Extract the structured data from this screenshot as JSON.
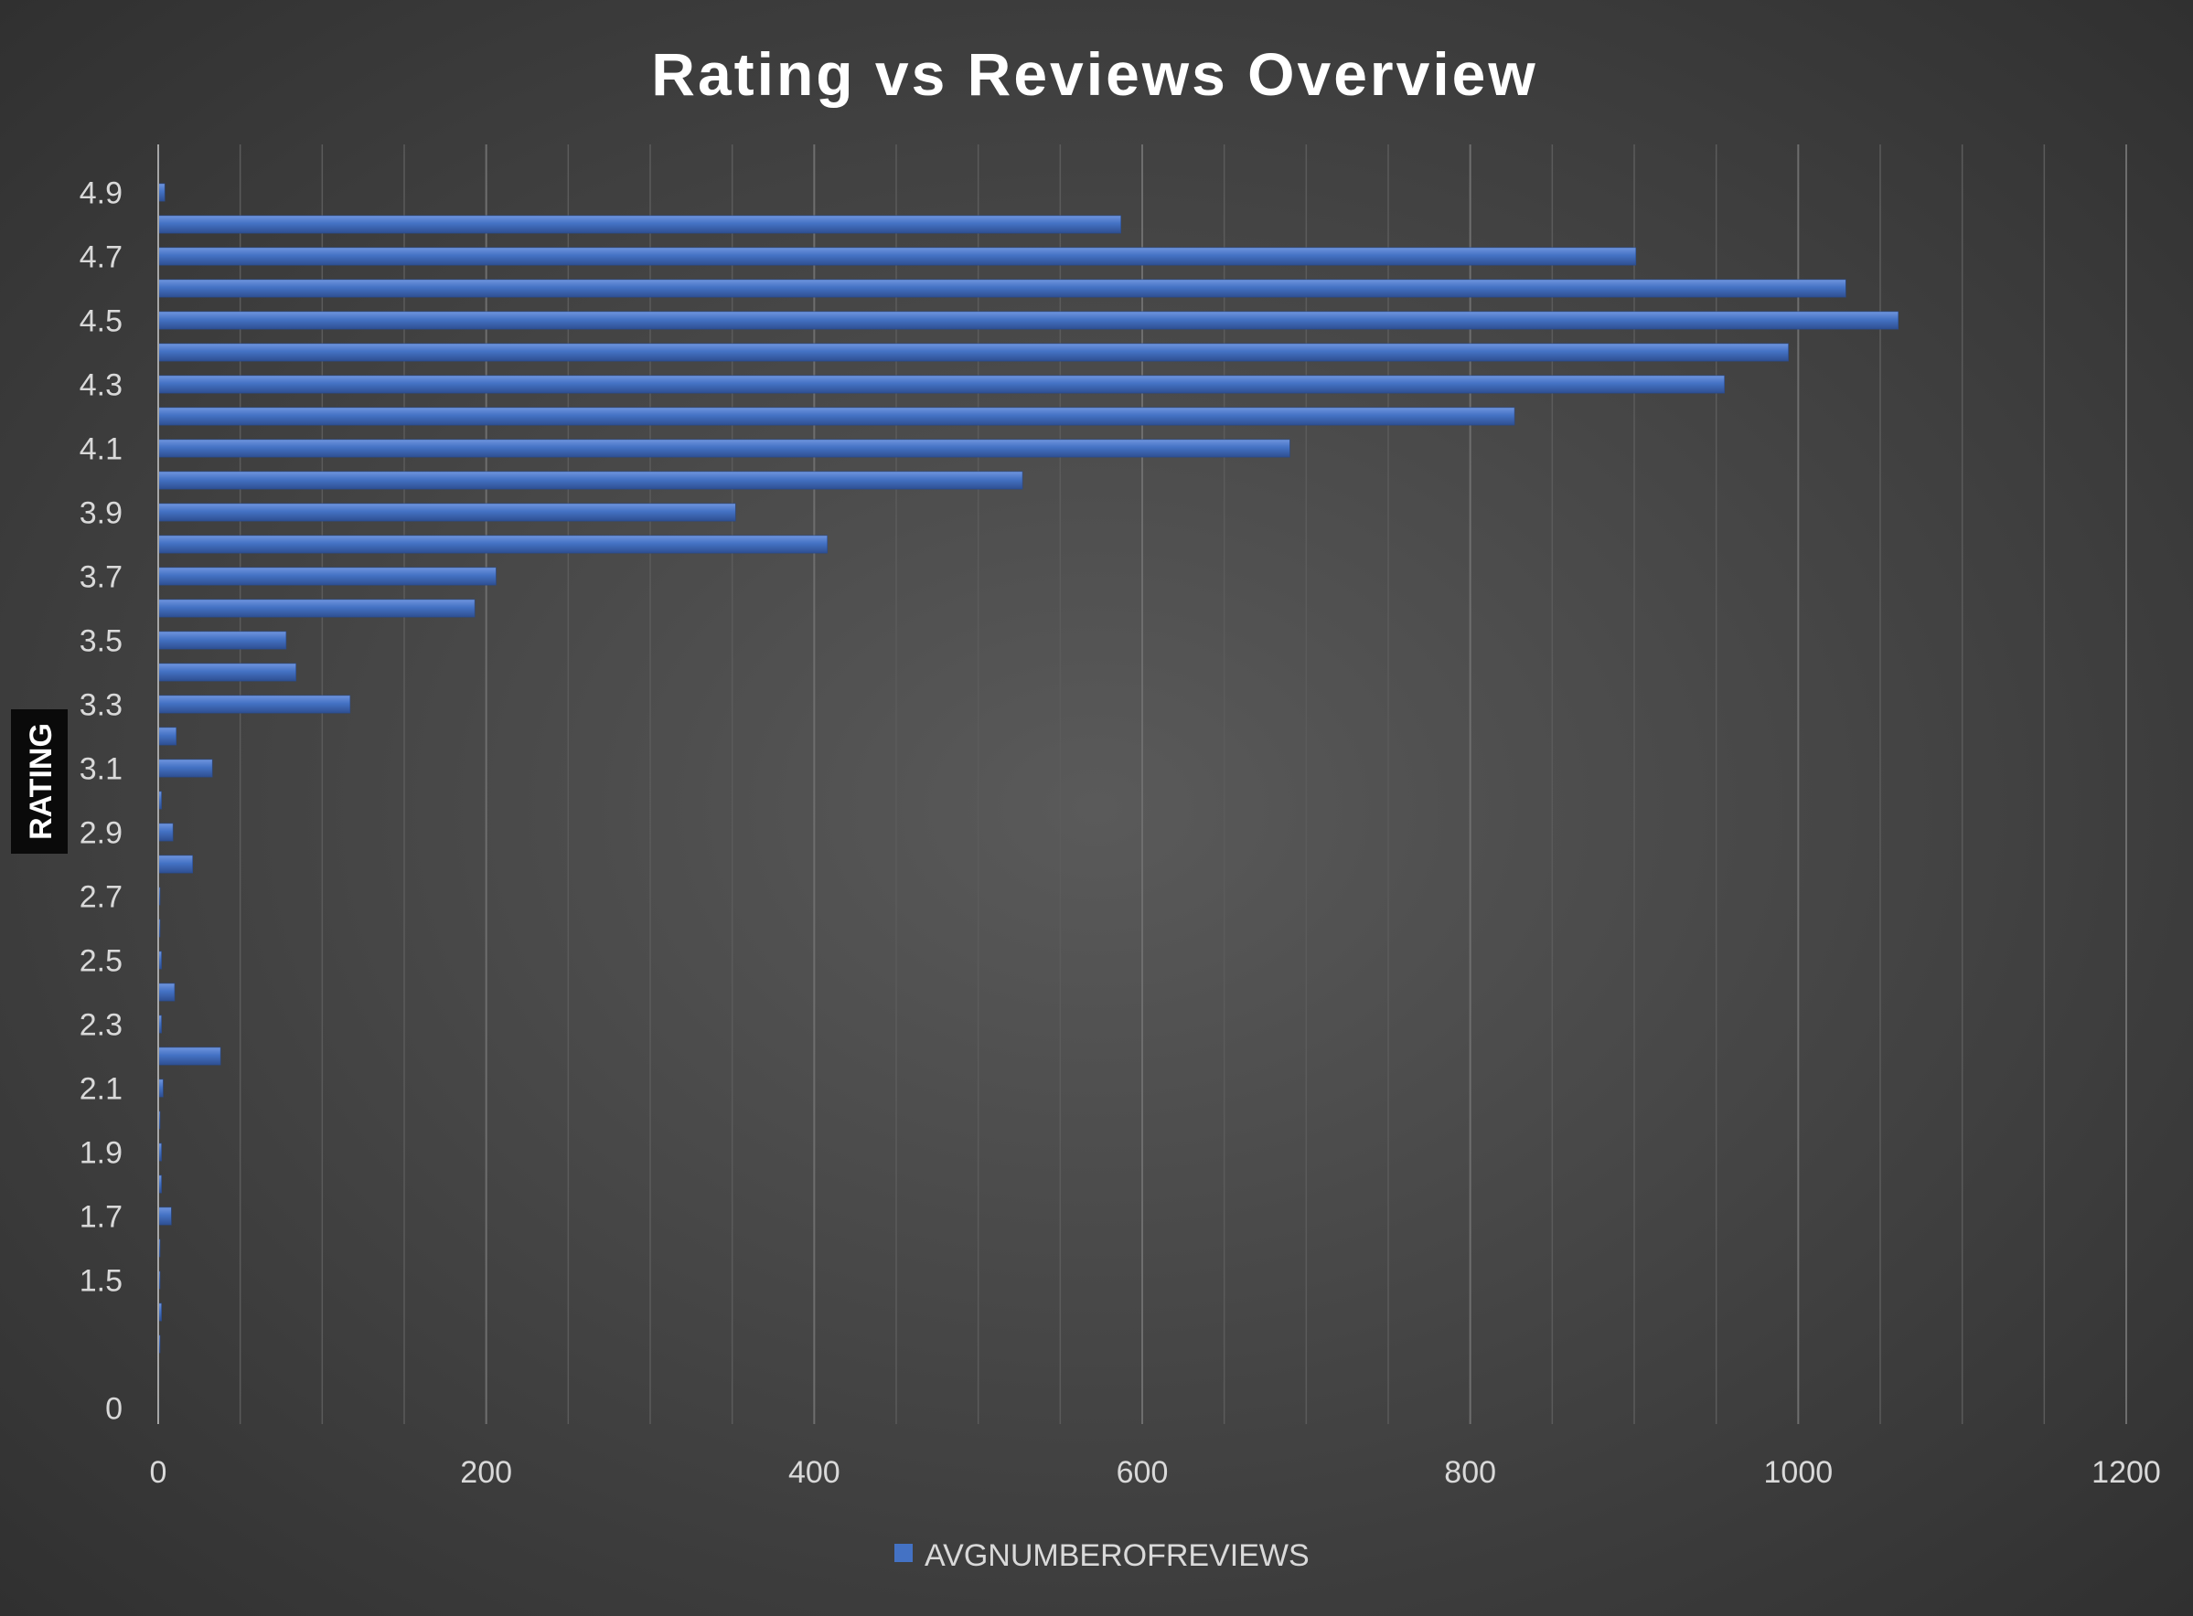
{
  "chart_data": {
    "type": "bar",
    "orientation": "horizontal",
    "title": "Rating vs Reviews Overview",
    "xlabel": "",
    "ylabel": "RATING",
    "xlim": [
      0,
      1200
    ],
    "x_ticks": [
      0,
      200,
      400,
      600,
      800,
      1000,
      1200
    ],
    "grid": true,
    "legend_position": "bottom",
    "categories": [
      "0",
      "1",
      "1.2",
      "1.4",
      "1.5",
      "1.6",
      "1.7",
      "1.8",
      "1.9",
      "2",
      "2.1",
      "2.2",
      "2.3",
      "2.4",
      "2.5",
      "2.6",
      "2.7",
      "2.8",
      "2.9",
      "3",
      "3.1",
      "3.2",
      "3.3",
      "3.4",
      "3.5",
      "3.6",
      "3.7",
      "3.8",
      "3.9",
      "4",
      "4.1",
      "4.2",
      "4.3",
      "4.4",
      "4.5",
      "4.6",
      "4.7",
      "4.8",
      "4.9",
      "5"
    ],
    "category_labels_shown": [
      "0",
      "",
      "",
      "",
      "1.5",
      "",
      "1.7",
      "",
      "1.9",
      "",
      "2.1",
      "",
      "2.3",
      "",
      "2.5",
      "",
      "2.7",
      "",
      "2.9",
      "",
      "3.1",
      "",
      "3.3",
      "",
      "3.5",
      "",
      "3.7",
      "",
      "3.9",
      "",
      "4.1",
      "",
      "4.3",
      "",
      "4.5",
      "",
      "4.7",
      "",
      "4.9",
      ""
    ],
    "series": [
      {
        "name": "AVGNUMBEROFREVIEWS",
        "color": "#4472c4",
        "values": [
          0,
          0,
          1,
          2,
          1,
          1,
          8,
          2,
          2,
          1,
          3,
          38,
          2,
          10,
          2,
          1,
          1,
          21,
          9,
          2,
          33,
          11,
          117,
          84,
          78,
          193,
          206,
          408,
          352,
          527,
          690,
          827,
          955,
          994,
          1061,
          1029,
          901,
          587,
          4,
          0
        ]
      }
    ]
  }
}
